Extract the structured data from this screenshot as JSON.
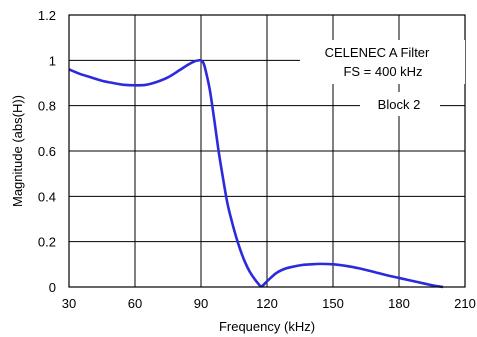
{
  "chart_data": {
    "type": "line",
    "title": "",
    "xlabel": "Frequency (kHz)",
    "ylabel": "Magnitude (abs(H))",
    "xlim": [
      30,
      210
    ],
    "ylim": [
      0,
      1.2
    ],
    "x_ticks": [
      30,
      60,
      90,
      120,
      150,
      180,
      210
    ],
    "y_ticks": [
      0,
      0.2,
      0.4,
      0.6,
      0.8,
      1,
      1.2
    ],
    "x_tick_labels": [
      "30",
      "60",
      "90",
      "120",
      "150",
      "180",
      "210"
    ],
    "y_tick_labels": [
      "0",
      "0.2",
      "0.4",
      "0.6",
      "0.8",
      "1",
      "1.2"
    ],
    "grid": true,
    "annotations": [
      "CELENEC A Filter",
      "FS = 400 kHz",
      "Block 2"
    ],
    "series": [
      {
        "color": "#2b2bdc",
        "x": [
          30,
          35,
          40,
          45,
          50,
          55,
          60,
          65,
          70,
          75,
          80,
          84,
          87,
          89,
          90,
          91,
          92,
          94,
          96,
          98,
          100,
          102,
          104,
          106,
          108,
          110,
          112,
          114,
          116,
          117.5,
          120,
          124,
          128,
          132,
          136,
          140,
          144,
          150,
          156,
          162,
          168,
          174,
          180,
          186,
          192,
          196,
          200
        ],
        "y": [
          0.96,
          0.94,
          0.925,
          0.91,
          0.9,
          0.892,
          0.89,
          0.892,
          0.905,
          0.925,
          0.955,
          0.98,
          0.995,
          1.0,
          1.0,
          0.99,
          0.96,
          0.87,
          0.74,
          0.6,
          0.48,
          0.37,
          0.29,
          0.22,
          0.16,
          0.11,
          0.07,
          0.04,
          0.015,
          0.003,
          0.025,
          0.06,
          0.08,
          0.09,
          0.097,
          0.1,
          0.102,
          0.1,
          0.093,
          0.082,
          0.068,
          0.053,
          0.04,
          0.027,
          0.014,
          0.006,
          0.0
        ]
      }
    ]
  }
}
